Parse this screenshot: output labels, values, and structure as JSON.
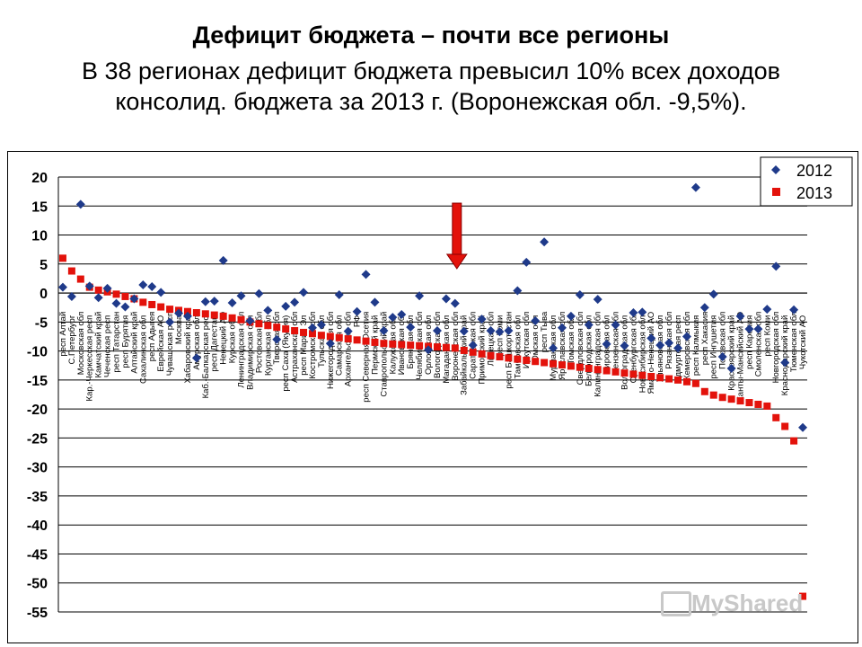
{
  "header": {
    "title": "Дефицит бюджета  – почти все регионы",
    "subtitle": "В 38 регионах дефицит бюджета превысил 10% всех доходов консолид. бюджета за 2013 г. (Воронежская обл. -9,5%)."
  },
  "watermark": {
    "text": "MyShared"
  },
  "colors": {
    "series2012": "#1f3a8a",
    "series2013": "#e3120b",
    "arrow": "#e3120b",
    "grid": "#000000"
  },
  "chart_data": {
    "type": "scatter",
    "title": "",
    "ylim": [
      -55,
      20
    ],
    "yticks": [
      20,
      15,
      10,
      5,
      0,
      -5,
      -10,
      -15,
      -20,
      -25,
      -30,
      -35,
      -40,
      -45,
      -50,
      -55
    ],
    "grid": true,
    "legend_position": "top-right",
    "categories": [
      "респ Алтай",
      "С.Петербург",
      "Московская обл",
      "Кар.-Черкесская респ",
      "Камчатский край",
      "Чеченская респ",
      "респ Татарстан",
      "респ Бурятия",
      "Алтайский край",
      "Сахалинская обл",
      "респ Адыгея",
      "Еврейская АО",
      "Чувашская респ",
      "Москва",
      "Хабаровский край",
      "Амурская обл",
      "Каб.-Балкарская респ",
      "респ Дагестан",
      "Ненецкий АО",
      "Курская обл",
      "Ленинградская обл",
      "Владимирская обл",
      "Ростовская обл",
      "Курганская обл",
      "Тверская обл",
      "респ Саха (Якутия)",
      "Астраханская обл",
      "респ Марий Эл",
      "Костромская обл",
      "Тульская обл",
      "Нижегородская обл",
      "Самарская обл",
      "Архангельская обл",
      "РФ",
      "респ Северная Осетия",
      "Пермский край",
      "Ставропольский край",
      "Калужская обл",
      "Ивановская обл",
      "Брянская обл",
      "Челябинская обл",
      "Орловская обл",
      "Вологодская обл",
      "Магаданская обл",
      "Воронежская обл",
      "Забайкальский край",
      "Саратовская обл",
      "Приморский край",
      "Липецкая обл",
      "респ Коми",
      "респ Башкортостан",
      "Тамбовская обл",
      "Иркутская обл",
      "Омская обл",
      "респ Тыва",
      "Мурманская обл",
      "Ярославская обл",
      "Томская обл",
      "Свердловская обл",
      "Белгородская обл",
      "Калининградская обл",
      "Кировская обл",
      "Пензенская обл",
      "Волгоградская обл",
      "Оренбургская обл",
      "Новосибирская обл",
      "Ямало-Ненецкий АО",
      "Ульяновская обл",
      "Рязанская обл",
      "Удмуртская респ",
      "Кемеровская обл",
      "респ Калмыкия",
      "респ Хакасия",
      "респ Ингушетия",
      "Псковская обл",
      "Красноярский край",
      "Ханты-Мансийский АО",
      "респ Карелия",
      "Смоленская обл",
      "респ Коми",
      "Новгородская обл",
      "Краснодарский край",
      "Тюменская обл",
      "Чукотский АО"
    ],
    "series": [
      {
        "name": "2012",
        "marker": "diamond",
        "values": [
          1.0,
          -0.6,
          15.3,
          1.2,
          -0.8,
          0.8,
          -1.8,
          -2.4,
          -1.0,
          1.4,
          1.1,
          0.1,
          -5.0,
          -3.5,
          -4.0,
          -11.2,
          -1.5,
          -1.4,
          5.6,
          -1.7,
          -0.5,
          -4.8,
          -0.1,
          -3.0,
          -8.0,
          -2.3,
          -1.6,
          0.1,
          -6.0,
          -5.5,
          -8.7,
          -0.3,
          -6.6,
          -3.2,
          3.2,
          -1.6,
          -6.5,
          -4.2,
          -3.7,
          -5.9,
          -0.5,
          -9.8,
          -6.5,
          -1.0,
          -1.8,
          -6.6,
          -9.0,
          -4.5,
          -6.5,
          -6.7,
          -6.5,
          0.4,
          5.3,
          -4.8,
          8.8,
          -9.5,
          -6.0,
          -4.0,
          -0.3,
          -5.5,
          -1.1,
          -8.8,
          -5.5,
          -9.1,
          -3.4,
          -3.3,
          -7.8,
          -9.0,
          -8.6,
          -9.5,
          -7.5,
          18.2,
          -2.5,
          -0.2,
          -11.0,
          -13.0,
          -4.0,
          -6.2,
          -6.2,
          -2.8,
          4.6,
          -12.0,
          -2.9,
          -23.2
        ]
      },
      {
        "name": "2013",
        "marker": "square",
        "values": [
          6.0,
          3.8,
          2.4,
          1.0,
          0.5,
          0.2,
          -0.2,
          -0.6,
          -1.0,
          -1.6,
          -2.0,
          -2.4,
          -2.8,
          -3.0,
          -3.2,
          -3.4,
          -3.6,
          -3.8,
          -4.0,
          -4.3,
          -4.6,
          -5.0,
          -5.3,
          -5.6,
          -5.9,
          -6.2,
          -6.5,
          -6.8,
          -7.0,
          -7.3,
          -7.5,
          -7.7,
          -7.9,
          -8.1,
          -8.3,
          -8.5,
          -8.7,
          -8.8,
          -8.9,
          -9.0,
          -9.1,
          -9.2,
          -9.3,
          -9.4,
          -9.5,
          -9.9,
          -10.2,
          -10.5,
          -10.8,
          -11.0,
          -11.2,
          -11.4,
          -11.6,
          -11.8,
          -12.0,
          -12.2,
          -12.4,
          -12.6,
          -12.8,
          -13.0,
          -13.2,
          -13.4,
          -13.6,
          -13.8,
          -14.0,
          -14.2,
          -14.4,
          -14.6,
          -14.8,
          -15.0,
          -15.3,
          -15.6,
          -17.0,
          -17.6,
          -18.0,
          -18.3,
          -18.6,
          -18.9,
          -19.2,
          -19.5,
          -21.5,
          -23.0,
          -25.5,
          -52.3
        ]
      }
    ],
    "annotation": {
      "type": "arrow-down",
      "category_index": 44,
      "from_y": 15.5,
      "to_y": 4.5
    }
  }
}
